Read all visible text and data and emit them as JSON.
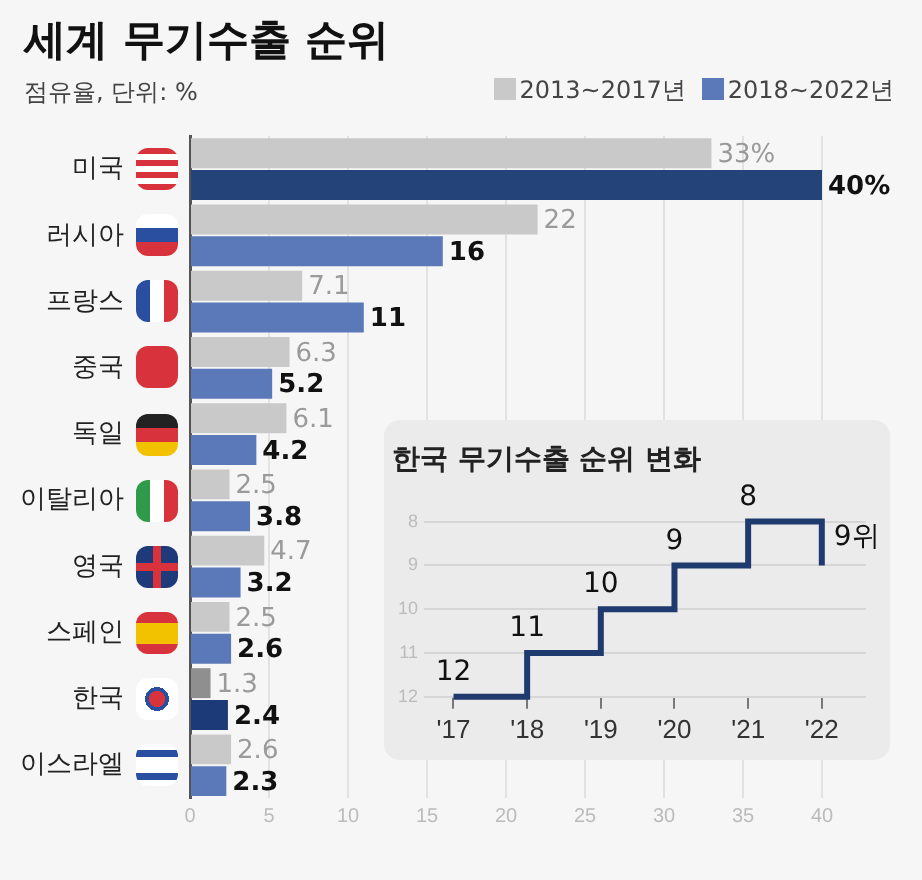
{
  "chart_data": [
    {
      "type": "bar",
      "orientation": "horizontal",
      "title": "세계 무기수출 순위",
      "subtitle": "점유율, 단위: %",
      "categories": [
        "미국",
        "러시아",
        "프랑스",
        "중국",
        "독일",
        "이탈리아",
        "영국",
        "스페인",
        "한국",
        "이스라엘"
      ],
      "series": [
        {
          "name": "2013~2017년",
          "color": "#c9c9c9",
          "colors": [
            "#c9c9c9",
            "#c9c9c9",
            "#c9c9c9",
            "#c9c9c9",
            "#c9c9c9",
            "#c9c9c9",
            "#c9c9c9",
            "#c9c9c9",
            "#8f8f8f",
            "#c9c9c9"
          ],
          "values": [
            33,
            22,
            7.1,
            6.3,
            6.1,
            2.5,
            4.7,
            2.5,
            1.3,
            2.6
          ],
          "value_labels": [
            "33%",
            "22",
            "7.1",
            "6.3",
            "6.1",
            "2.5",
            "4.7",
            "2.5",
            "1.3",
            "2.6"
          ]
        },
        {
          "name": "2018~2022년",
          "color": "#5b79b9",
          "colors": [
            "#244479",
            "#5b79b9",
            "#5b79b9",
            "#5b79b9",
            "#5b79b9",
            "#5b79b9",
            "#5b79b9",
            "#5b79b9",
            "#1c3a78",
            "#5b79b9"
          ],
          "values": [
            40,
            16,
            11,
            5.2,
            4.2,
            3.8,
            3.2,
            2.6,
            2.4,
            2.3
          ],
          "value_labels": [
            "40%",
            "16",
            "11",
            "5.2",
            "4.2",
            "3.8",
            "3.2",
            "2.6",
            "2.4",
            "2.3"
          ]
        }
      ],
      "xlim": [
        0,
        40
      ],
      "xticks": [
        0,
        5,
        10,
        15,
        20,
        25,
        30,
        35,
        40
      ],
      "grid": "x",
      "legend": "top right"
    },
    {
      "type": "step",
      "title": "한국 무기수출 순위 변화",
      "x": [
        2017,
        2018,
        2019,
        2020,
        2021,
        2022
      ],
      "color": "#1f3a6e",
      "values": [
        12,
        11,
        10,
        9,
        8,
        9
      ],
      "value_labels": [
        "12",
        "11",
        "10",
        "9",
        "8",
        "9위"
      ],
      "xlim": [
        2016.6,
        2022.6
      ],
      "xticks": [
        {
          "value": 2017,
          "label": "'17"
        },
        {
          "value": 2018,
          "label": "'18"
        },
        {
          "value": 2019,
          "label": "'19"
        },
        {
          "value": 2020,
          "label": "'20"
        },
        {
          "value": 2021,
          "label": "'21"
        },
        {
          "value": 2022,
          "label": "'22"
        }
      ],
      "ylim": [
        12,
        8
      ],
      "yticks": [
        8,
        9,
        10,
        11,
        12
      ],
      "grid": "y"
    }
  ]
}
